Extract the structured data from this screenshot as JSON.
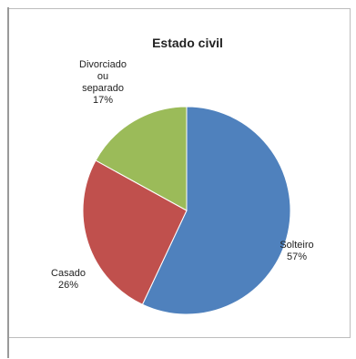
{
  "chart_data": {
    "type": "pie",
    "title": "Estado civil",
    "slices": [
      {
        "label": "Solteiro",
        "value": 57,
        "value_text": "57%",
        "color": "#4F81BD"
      },
      {
        "label": "Casado",
        "value": 26,
        "value_text": "26%",
        "color": "#C0504D"
      },
      {
        "label": "Divorciado ou separado",
        "label_lines": [
          "Divorciado",
          "ou",
          "separado"
        ],
        "value": 17,
        "value_text": "17%",
        "color": "#9BBB59"
      }
    ]
  }
}
